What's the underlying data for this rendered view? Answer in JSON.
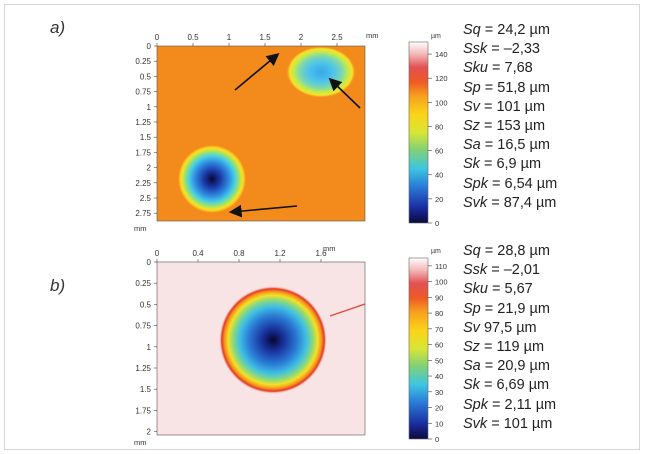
{
  "figure": {
    "panels": [
      {
        "label": "a)",
        "x_axis": {
          "ticks": [
            "0",
            "0.5",
            "1",
            "1.5",
            "2",
            "2.5"
          ],
          "unit": "mm"
        },
        "y_axis": {
          "ticks": [
            "0",
            "0.25",
            "0.5",
            "0.75",
            "1",
            "1.25",
            "1.5",
            "1.75",
            "2",
            "2.25",
            "2.5",
            "2.75"
          ],
          "unit": "mm"
        },
        "colorbar": {
          "unit": "µm",
          "ticks": [
            "140",
            "120",
            "100",
            "80",
            "60",
            "40",
            "20",
            "0"
          ],
          "range": [
            0,
            150
          ]
        },
        "stats": [
          {
            "name": "Sq",
            "value": "= 24,2 µm"
          },
          {
            "name": "Ssk",
            "value": "= –2,33"
          },
          {
            "name": "Sku",
            "value": "= 7,68"
          },
          {
            "name": "Sp",
            "value": "= 51,8 µm"
          },
          {
            "name": "Sv",
            "value": "= 101 µm"
          },
          {
            "name": "Sz",
            "value": "= 153 µm"
          },
          {
            "name": "Sa",
            "value": "= 16,5 µm"
          },
          {
            "name": "Sk",
            "value": "= 6,9 µm"
          },
          {
            "name": "Spk",
            "value": "= 6,54 µm"
          },
          {
            "name": "Svk",
            "value": "= 87,4 µm"
          }
        ]
      },
      {
        "label": "b)",
        "x_axis": {
          "ticks": [
            "0",
            "0.4",
            "0.8",
            "1.2",
            "1.6"
          ],
          "unit": "mm"
        },
        "y_axis": {
          "ticks": [
            "0",
            "0.25",
            "0.5",
            "0.75",
            "1",
            "1.25",
            "1.5",
            "1.75",
            "2"
          ],
          "unit": "mm"
        },
        "colorbar": {
          "unit": "µm",
          "ticks": [
            "110",
            "100",
            "90",
            "80",
            "70",
            "60",
            "50",
            "40",
            "30",
            "20",
            "10",
            "0"
          ],
          "range": [
            0,
            115
          ]
        },
        "stats": [
          {
            "name": "Sq",
            "value": "= 28,8 µm"
          },
          {
            "name": "Ssk",
            "value": "= –2,01"
          },
          {
            "name": "Sku",
            "value": "= 5,67"
          },
          {
            "name": "Sp",
            "value": "= 21,9 µm"
          },
          {
            "name": "Sv",
            "value": "97,5 µm"
          },
          {
            "name": "Sz",
            "value": "= 119 µm"
          },
          {
            "name": "Sa",
            "value": "= 20,9 µm"
          },
          {
            "name": "Sk",
            "value": "= 6,69 µm"
          },
          {
            "name": "Spk",
            "value": "= 2,11 µm"
          },
          {
            "name": "Svk",
            "value": "= 101 µm"
          }
        ]
      }
    ]
  }
}
